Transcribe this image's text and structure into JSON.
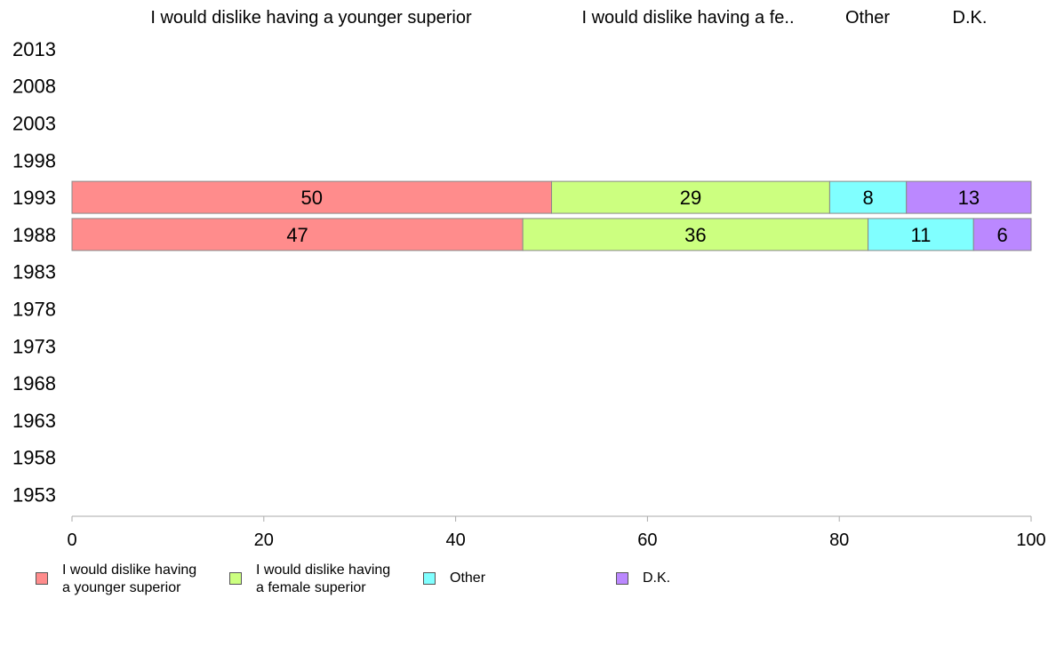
{
  "chart_data": {
    "type": "bar",
    "orientation": "horizontal",
    "stacked": true,
    "categories": [
      "2013",
      "2008",
      "2003",
      "1998",
      "1993",
      "1988",
      "1983",
      "1978",
      "1973",
      "1968",
      "1963",
      "1958",
      "1953"
    ],
    "series": [
      {
        "name": "I would dislike having a younger superior",
        "header": "I would dislike having a younger superior",
        "legend": "I would dislike having\na younger superior",
        "color": "#ff8c8c",
        "values": [
          null,
          null,
          null,
          null,
          50,
          47,
          null,
          null,
          null,
          null,
          null,
          null,
          null
        ]
      },
      {
        "name": "I would dislike having a female superior",
        "header": "I would dislike having a fe..",
        "legend": "I would dislike having\na female superior",
        "color": "#ccff80",
        "values": [
          null,
          null,
          null,
          null,
          29,
          36,
          null,
          null,
          null,
          null,
          null,
          null,
          null
        ]
      },
      {
        "name": "Other",
        "header": "Other",
        "legend": "Other",
        "color": "#80ffff",
        "values": [
          null,
          null,
          null,
          null,
          8,
          11,
          null,
          null,
          null,
          null,
          null,
          null,
          null
        ]
      },
      {
        "name": "D.K.",
        "header": "D.K.",
        "legend": "D.K.",
        "color": "#bb88ff",
        "values": [
          null,
          null,
          null,
          null,
          13,
          6,
          null,
          null,
          null,
          null,
          null,
          null,
          null
        ]
      }
    ],
    "xlim": [
      0,
      100
    ],
    "xticks": [
      0,
      20,
      40,
      60,
      80,
      100
    ],
    "grid": false,
    "legend_position": "bottom"
  }
}
